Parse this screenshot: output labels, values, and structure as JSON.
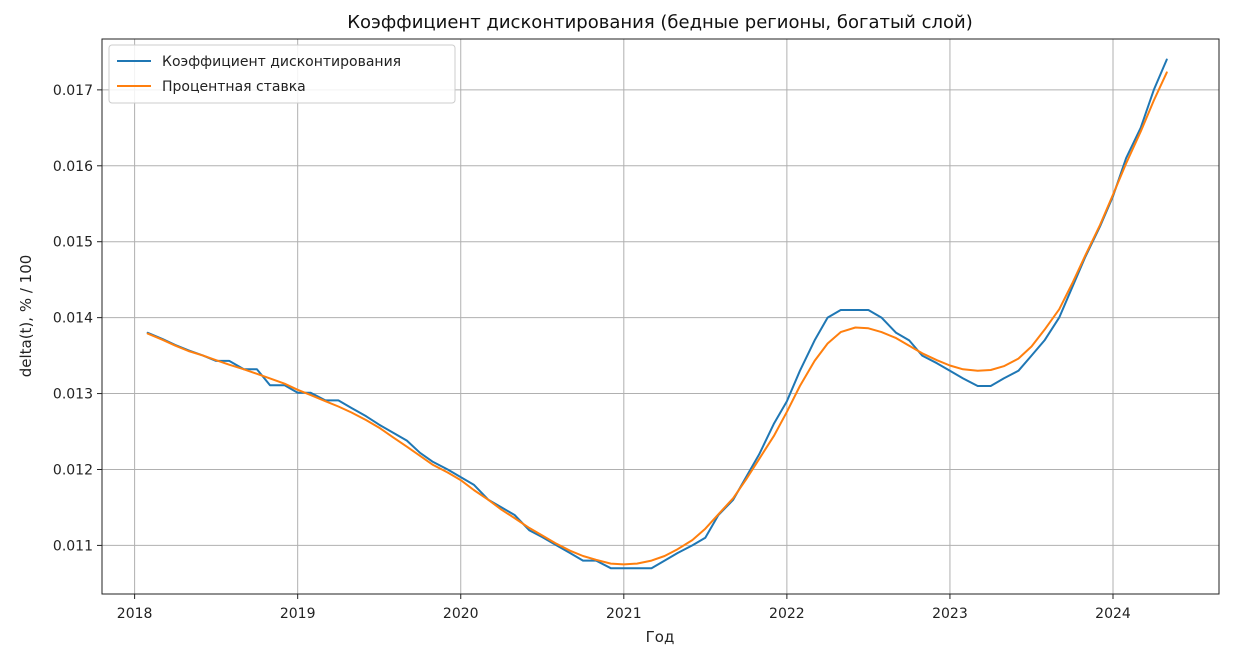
{
  "chart_data": {
    "type": "line",
    "title": "Коэффициент дисконтирования (бедные регионы, богатый слой)",
    "xlabel": "Год",
    "ylabel": "delta(t), % / 100",
    "xlim": [
      2017.8,
      2024.65
    ],
    "ylim": [
      0.01036,
      0.01767
    ],
    "grid": true,
    "legend_position": "top-left",
    "x_ticks": [
      2018,
      2019,
      2020,
      2021,
      2022,
      2023,
      2024
    ],
    "x_tick_labels": [
      "2018",
      "2019",
      "2020",
      "2021",
      "2022",
      "2023",
      "2024"
    ],
    "y_ticks": [
      0.011,
      0.012,
      0.013,
      0.014,
      0.015,
      0.016,
      0.017
    ],
    "y_tick_labels": [
      "0.011",
      "0.012",
      "0.013",
      "0.014",
      "0.015",
      "0.016",
      "0.017"
    ],
    "series": [
      {
        "name": "Коэффициент дисконтирования",
        "color": "#1f77b4",
        "x": [
          2018.08,
          2018.17,
          2018.25,
          2018.33,
          2018.42,
          2018.5,
          2018.58,
          2018.67,
          2018.75,
          2018.83,
          2018.92,
          2019.0,
          2019.08,
          2019.17,
          2019.25,
          2019.33,
          2019.42,
          2019.5,
          2019.58,
          2019.67,
          2019.75,
          2019.83,
          2019.92,
          2020.0,
          2020.08,
          2020.17,
          2020.25,
          2020.33,
          2020.42,
          2020.5,
          2020.58,
          2020.67,
          2020.75,
          2020.83,
          2020.92,
          2021.0,
          2021.08,
          2021.17,
          2021.25,
          2021.33,
          2021.42,
          2021.5,
          2021.58,
          2021.67,
          2021.75,
          2021.83,
          2021.92,
          2022.0,
          2022.08,
          2022.17,
          2022.25,
          2022.33,
          2022.42,
          2022.5,
          2022.58,
          2022.67,
          2022.75,
          2022.83,
          2022.92,
          2023.0,
          2023.08,
          2023.17,
          2023.25,
          2023.33,
          2023.42,
          2023.5,
          2023.58,
          2023.67,
          2023.75,
          2023.83,
          2023.92,
          2024.0,
          2024.08,
          2024.17,
          2024.25,
          2024.33
        ],
        "values": [
          0.0138,
          0.01372,
          0.01364,
          0.01357,
          0.0135,
          0.01343,
          0.01343,
          0.01332,
          0.01332,
          0.01311,
          0.01311,
          0.01301,
          0.01301,
          0.01291,
          0.01291,
          0.01281,
          0.0127,
          0.01259,
          0.01249,
          0.01238,
          0.01222,
          0.0121,
          0.012,
          0.0119,
          0.0118,
          0.0116,
          0.0115,
          0.0114,
          0.0112,
          0.01111,
          0.01101,
          0.0109,
          0.0108,
          0.0108,
          0.0107,
          0.0107,
          0.0107,
          0.0107,
          0.0108,
          0.0109,
          0.011,
          0.0111,
          0.0114,
          0.0116,
          0.0119,
          0.0122,
          0.0126,
          0.0129,
          0.0133,
          0.0137,
          0.014,
          0.0141,
          0.0141,
          0.0141,
          0.014,
          0.0138,
          0.0137,
          0.0135,
          0.0134,
          0.0133,
          0.0132,
          0.0131,
          0.0131,
          0.0132,
          0.0133,
          0.0135,
          0.0137,
          0.014,
          0.0144,
          0.0148,
          0.0152,
          0.0156,
          0.0161,
          0.0165,
          0.017,
          0.0174
        ]
      },
      {
        "name": "Процентная ставка",
        "color": "#ff7f0e",
        "x": [
          2018.08,
          2018.17,
          2018.25,
          2018.33,
          2018.42,
          2018.5,
          2018.58,
          2018.67,
          2018.75,
          2018.83,
          2018.92,
          2019.0,
          2019.08,
          2019.17,
          2019.25,
          2019.33,
          2019.42,
          2019.5,
          2019.58,
          2019.67,
          2019.75,
          2019.83,
          2019.92,
          2020.0,
          2020.08,
          2020.17,
          2020.25,
          2020.33,
          2020.42,
          2020.5,
          2020.58,
          2020.67,
          2020.75,
          2020.83,
          2020.92,
          2021.0,
          2021.08,
          2021.17,
          2021.25,
          2021.33,
          2021.42,
          2021.5,
          2021.58,
          2021.67,
          2021.75,
          2021.83,
          2021.92,
          2022.0,
          2022.08,
          2022.17,
          2022.25,
          2022.33,
          2022.42,
          2022.5,
          2022.58,
          2022.67,
          2022.75,
          2022.83,
          2022.92,
          2023.0,
          2023.08,
          2023.17,
          2023.25,
          2023.33,
          2023.42,
          2023.5,
          2023.58,
          2023.67,
          2023.75,
          2023.83,
          2023.92,
          2024.0,
          2024.08,
          2024.17,
          2024.25,
          2024.33
        ],
        "values": [
          0.01379,
          0.01371,
          0.01363,
          0.01356,
          0.0135,
          0.01344,
          0.01338,
          0.01332,
          0.01326,
          0.0132,
          0.01313,
          0.01305,
          0.01298,
          0.0129,
          0.01283,
          0.01275,
          0.01265,
          0.01255,
          0.01243,
          0.0123,
          0.01218,
          0.01206,
          0.01196,
          0.01186,
          0.01173,
          0.0116,
          0.01147,
          0.01136,
          0.01123,
          0.01113,
          0.01103,
          0.01093,
          0.01086,
          0.01081,
          0.01076,
          0.01075,
          0.01076,
          0.0108,
          0.01086,
          0.01095,
          0.01107,
          0.01122,
          0.01141,
          0.01162,
          0.01187,
          0.01214,
          0.01244,
          0.01276,
          0.0131,
          0.01343,
          0.01366,
          0.01381,
          0.01387,
          0.01386,
          0.01381,
          0.01373,
          0.01363,
          0.01353,
          0.01344,
          0.01337,
          0.01332,
          0.0133,
          0.01331,
          0.01336,
          0.01346,
          0.01362,
          0.01384,
          0.01411,
          0.01445,
          0.01482,
          0.01522,
          0.01562,
          0.01603,
          0.01645,
          0.01686,
          0.01723
        ]
      }
    ]
  }
}
